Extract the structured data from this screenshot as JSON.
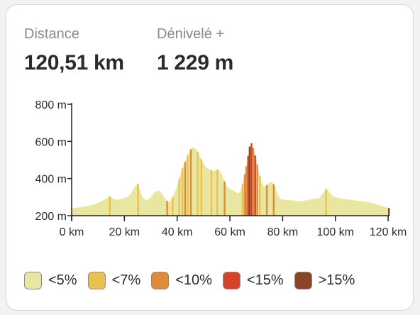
{
  "stats": {
    "distance": {
      "label": "Distance",
      "value": "120,51 km"
    },
    "gain": {
      "label": "Dénivelé +",
      "value": "1 229 m"
    }
  },
  "chart_data": {
    "type": "area",
    "title": "",
    "xlabel": "",
    "ylabel": "",
    "xlim": [
      0,
      120.51
    ],
    "ylim": [
      200,
      800
    ],
    "x_ticks": [
      {
        "value": 0,
        "label": "0 km"
      },
      {
        "value": 20,
        "label": "20 km"
      },
      {
        "value": 40,
        "label": "40 km"
      },
      {
        "value": 60,
        "label": "60 km"
      },
      {
        "value": 80,
        "label": "80 km"
      },
      {
        "value": 100,
        "label": "100 km"
      },
      {
        "value": 120,
        "label": "120 km"
      }
    ],
    "y_ticks": [
      {
        "value": 200,
        "label": "200 m"
      },
      {
        "value": 400,
        "label": "400 m"
      },
      {
        "value": 600,
        "label": "600 m"
      },
      {
        "value": 800,
        "label": "800 m"
      }
    ],
    "grid": false,
    "legend_position": "bottom",
    "profile": [
      [
        0,
        240
      ],
      [
        3,
        245
      ],
      [
        6,
        252
      ],
      [
        9,
        262
      ],
      [
        11,
        275
      ],
      [
        12.5,
        288
      ],
      [
        13.5,
        296
      ],
      [
        14.5,
        305
      ],
      [
        15.5,
        292
      ],
      [
        17,
        285
      ],
      [
        19,
        290
      ],
      [
        21,
        300
      ],
      [
        22.5,
        318
      ],
      [
        23.5,
        345
      ],
      [
        24.5,
        365
      ],
      [
        25.2,
        372
      ],
      [
        26,
        330
      ],
      [
        27,
        295
      ],
      [
        28.5,
        282
      ],
      [
        30,
        298
      ],
      [
        31,
        318
      ],
      [
        32,
        332
      ],
      [
        33,
        336
      ],
      [
        34,
        325
      ],
      [
        35,
        300
      ],
      [
        36,
        282
      ],
      [
        37,
        272
      ],
      [
        38,
        290
      ],
      [
        39,
        320
      ],
      [
        40,
        360
      ],
      [
        41,
        410
      ],
      [
        42,
        455
      ],
      [
        43,
        490
      ],
      [
        44,
        525
      ],
      [
        45,
        555
      ],
      [
        46,
        570
      ],
      [
        47,
        560
      ],
      [
        48,
        540
      ],
      [
        49,
        510
      ],
      [
        50,
        480
      ],
      [
        51,
        460
      ],
      [
        52,
        450
      ],
      [
        53,
        445
      ],
      [
        54,
        440
      ],
      [
        55,
        450
      ],
      [
        56,
        445
      ],
      [
        57,
        420
      ],
      [
        58,
        385
      ],
      [
        59,
        355
      ],
      [
        60,
        345
      ],
      [
        61,
        340
      ],
      [
        62,
        328
      ],
      [
        63,
        320
      ],
      [
        64,
        330
      ],
      [
        65,
        380
      ],
      [
        66,
        450
      ],
      [
        67,
        530
      ],
      [
        67.6,
        580
      ],
      [
        68.2,
        590
      ],
      [
        69,
        560
      ],
      [
        70,
        500
      ],
      [
        71,
        440
      ],
      [
        72,
        380
      ],
      [
        73,
        355
      ],
      [
        74,
        365
      ],
      [
        75,
        378
      ],
      [
        76,
        382
      ],
      [
        77,
        360
      ],
      [
        78,
        320
      ],
      [
        79,
        290
      ],
      [
        81,
        285
      ],
      [
        84,
        282
      ],
      [
        87,
        278
      ],
      [
        90,
        285
      ],
      [
        92,
        290
      ],
      [
        94,
        295
      ],
      [
        95.5,
        325
      ],
      [
        96.5,
        345
      ],
      [
        97.5,
        330
      ],
      [
        99,
        305
      ],
      [
        102,
        292
      ],
      [
        106,
        285
      ],
      [
        110,
        278
      ],
      [
        113,
        272
      ],
      [
        116,
        260
      ],
      [
        118,
        250
      ],
      [
        120.51,
        240
      ]
    ],
    "steep_segments": [
      {
        "x": 14.5,
        "class": "<7%"
      },
      {
        "x": 25.2,
        "class": "<7%"
      },
      {
        "x": 36.2,
        "class": "<10%"
      },
      {
        "x": 38.3,
        "class": "<7%"
      },
      {
        "x": 40.8,
        "class": "<7%"
      },
      {
        "x": 42.0,
        "class": "<7%"
      },
      {
        "x": 43.0,
        "class": "<10%"
      },
      {
        "x": 44.0,
        "class": "<7%"
      },
      {
        "x": 45.2,
        "class": "<10%"
      },
      {
        "x": 47.8,
        "class": "<7%"
      },
      {
        "x": 49.2,
        "class": "<7%"
      },
      {
        "x": 53.0,
        "class": "<7%"
      },
      {
        "x": 55.2,
        "class": "<7%"
      },
      {
        "x": 58.0,
        "class": "<10%"
      },
      {
        "x": 64.8,
        "class": "<7%"
      },
      {
        "x": 65.6,
        "class": "<10%"
      },
      {
        "x": 66.2,
        "class": "<10%"
      },
      {
        "x": 66.9,
        "class": "<15%"
      },
      {
        "x": 67.5,
        "class": ">15%"
      },
      {
        "x": 68.2,
        "class": "<15%"
      },
      {
        "x": 68.9,
        "class": "<10%"
      },
      {
        "x": 69.6,
        "class": "<15%"
      },
      {
        "x": 70.4,
        "class": "<10%"
      },
      {
        "x": 71.4,
        "class": "<7%"
      },
      {
        "x": 74.0,
        "class": "<10%"
      },
      {
        "x": 76.6,
        "class": "<10%"
      },
      {
        "x": 96.5,
        "class": "<7%"
      },
      {
        "x": 120.3,
        "class": ">15%"
      }
    ]
  },
  "legend": [
    {
      "label": "<5%",
      "color": "#e8e6a0"
    },
    {
      "label": "<7%",
      "color": "#e9c250"
    },
    {
      "label": "<10%",
      "color": "#e08b38"
    },
    {
      "label": "<15%",
      "color": "#d6432b"
    },
    {
      "label": ">15%",
      "color": "#8b4526"
    }
  ]
}
